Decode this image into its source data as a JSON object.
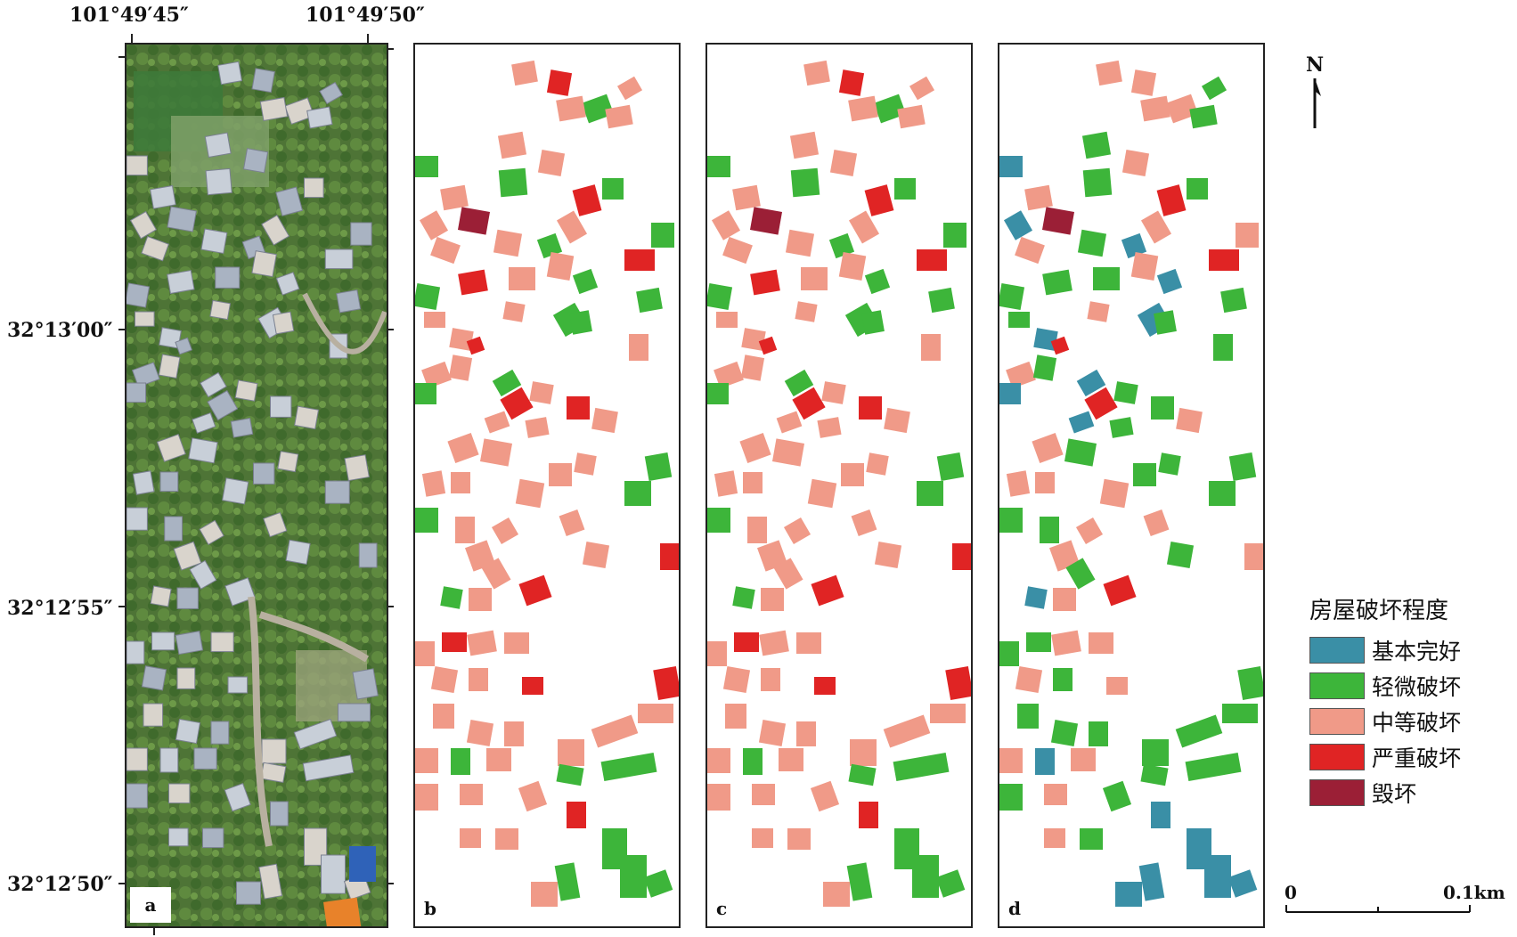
{
  "coordinates": {
    "lon_left": "101°49′45″",
    "lon_right": "101°49′50″",
    "lat_top": "32°13′00″",
    "lat_mid": "32°12′55″",
    "lat_bottom": "32°12′50″"
  },
  "panels": [
    {
      "label": "a",
      "kind": "aerial-photo"
    },
    {
      "label": "b",
      "kind": "damage-map"
    },
    {
      "label": "c",
      "kind": "damage-map"
    },
    {
      "label": "d",
      "kind": "damage-map"
    }
  ],
  "north_arrow": {
    "label": "N"
  },
  "scale_bar": {
    "start": "0",
    "end": "0.1km"
  },
  "legend": {
    "title": "房屋破坏程度",
    "items": [
      {
        "label": "基本完好",
        "color": "#3a8fa6"
      },
      {
        "label": "轻微破坏",
        "color": "#3db53a"
      },
      {
        "label": "中等破坏",
        "color": "#f09a88"
      },
      {
        "label": "严重破坏",
        "color": "#e02424"
      },
      {
        "label": "毁坏",
        "color": "#9b1f36"
      }
    ]
  }
}
